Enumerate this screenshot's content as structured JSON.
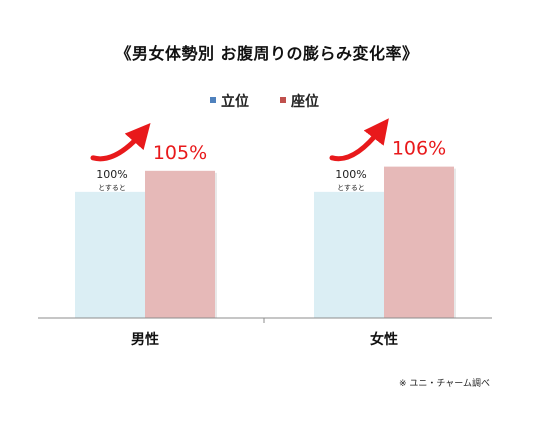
{
  "chart_data": {
    "type": "bar",
    "title": "《男女体勢別 お腹周りの膨らみ変化率》",
    "categories": [
      "男性",
      "女性"
    ],
    "series": [
      {
        "name": "立位",
        "values": [
          100,
          100
        ],
        "color": "#4f81bd",
        "bar_color": "#dbeef4"
      },
      {
        "name": "座位",
        "values": [
          105,
          106
        ],
        "color": "#c0504d",
        "bar_color": "#e6b9b8"
      }
    ],
    "baseline_label": {
      "value": "100%",
      "sub": "とすると"
    },
    "increase_labels": [
      "105%",
      "106%"
    ],
    "accent_color": "#e8191b",
    "ylim": [
      70,
      109
    ],
    "legend_position": "top-center",
    "grid": false,
    "source": "※ ユニ・チャーム調べ"
  }
}
